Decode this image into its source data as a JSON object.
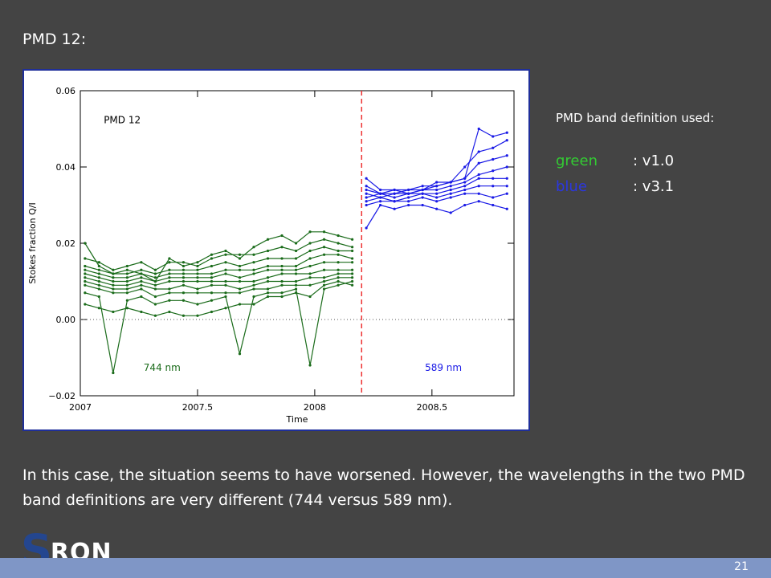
{
  "slide": {
    "title": "PMD 12:",
    "caption": "In this case, the situation seems to have worsened. However, the wavelengths in the two PMD band definitions are very different (744 versus 589 nm).",
    "page_number": "21",
    "logo": "SRON"
  },
  "legend": {
    "title": "PMD band definition used:",
    "items": [
      {
        "key": "green",
        "value": ": v1.0",
        "color": "#33cc33"
      },
      {
        "key": "blue",
        "value": ": v3.1",
        "color": "#2b37e0"
      }
    ]
  },
  "colors": {
    "background": "#444444",
    "green_series": "#1a6b1a",
    "blue_series": "#1a1ae6",
    "vline": "#ee3333",
    "frame_border": "#1f2f9a",
    "bottom_bar": "#7f96c6"
  },
  "chart_data": {
    "type": "line",
    "title": "PMD 12",
    "xlabel": "Time",
    "ylabel": "Stokes fraction Q/I",
    "xlim": [
      2007.0,
      2008.85
    ],
    "ylim": [
      -0.02,
      0.06
    ],
    "xticks": [
      2007.0,
      2007.5,
      2008.0,
      2008.5
    ],
    "xtick_labels": [
      "2007",
      "2007.5",
      "2008",
      "2008.5"
    ],
    "yticks": [
      -0.02,
      0.0,
      0.02,
      0.04,
      0.06
    ],
    "ytick_labels": [
      "−0.02",
      "0.00",
      "0.02",
      "0.04",
      "0.06"
    ],
    "zero_line": 0.0,
    "vertical_line_x": 2008.2,
    "annotations": [
      {
        "text": "744 nm",
        "color": "#1a6b1a",
        "x": 2007.27,
        "y": -0.0135
      },
      {
        "text": "589 nm",
        "color": "#1a1ae6",
        "x": 2008.47,
        "y": -0.0135
      }
    ],
    "x": [
      2007.02,
      2007.08,
      2007.14,
      2007.2,
      2007.26,
      2007.32,
      2007.38,
      2007.44,
      2007.5,
      2007.56,
      2007.62,
      2007.68,
      2007.74,
      2007.8,
      2007.86,
      2007.92,
      2007.98,
      2008.04,
      2008.1,
      2008.16
    ],
    "x_blue": [
      2008.22,
      2008.28,
      2008.34,
      2008.4,
      2008.46,
      2008.52,
      2008.58,
      2008.64,
      2008.7,
      2008.76,
      2008.82
    ],
    "series": [
      {
        "name": "744 nm",
        "color": "#1a6b1a",
        "values": [
          0.02,
          0.014,
          0.012,
          0.013,
          0.012,
          0.01,
          0.016,
          0.014,
          0.015,
          0.017,
          0.018,
          0.016,
          0.019,
          0.021,
          0.022,
          0.02,
          0.023,
          0.023,
          0.022,
          0.021
        ]
      },
      {
        "color": "#1a6b1a",
        "values": [
          0.016,
          0.015,
          0.013,
          0.014,
          0.015,
          0.013,
          0.015,
          0.015,
          0.014,
          0.016,
          0.017,
          0.017,
          0.017,
          0.018,
          0.019,
          0.018,
          0.02,
          0.021,
          0.02,
          0.019
        ]
      },
      {
        "color": "#1a6b1a",
        "values": [
          0.014,
          0.013,
          0.012,
          0.012,
          0.013,
          0.012,
          0.013,
          0.013,
          0.013,
          0.014,
          0.015,
          0.014,
          0.015,
          0.016,
          0.016,
          0.016,
          0.018,
          0.019,
          0.018,
          0.018
        ]
      },
      {
        "color": "#1a6b1a",
        "values": [
          0.013,
          0.012,
          0.011,
          0.011,
          0.012,
          0.011,
          0.012,
          0.012,
          0.012,
          0.012,
          0.013,
          0.013,
          0.013,
          0.014,
          0.014,
          0.014,
          0.016,
          0.017,
          0.017,
          0.016
        ]
      },
      {
        "color": "#1a6b1a",
        "values": [
          0.012,
          0.011,
          0.01,
          0.01,
          0.011,
          0.01,
          0.011,
          0.011,
          0.011,
          0.011,
          0.012,
          0.011,
          0.012,
          0.013,
          0.013,
          0.013,
          0.014,
          0.015,
          0.015,
          0.015
        ]
      },
      {
        "color": "#1a6b1a",
        "values": [
          0.011,
          0.01,
          0.009,
          0.009,
          0.01,
          0.009,
          0.01,
          0.01,
          0.01,
          0.01,
          0.01,
          0.01,
          0.01,
          0.011,
          0.012,
          0.012,
          0.012,
          0.013,
          0.013,
          0.013
        ]
      },
      {
        "color": "#1a6b1a",
        "values": [
          0.01,
          0.009,
          0.008,
          0.008,
          0.009,
          0.008,
          0.008,
          0.009,
          0.008,
          0.009,
          0.009,
          0.008,
          0.009,
          0.01,
          0.01,
          0.01,
          0.011,
          0.011,
          0.012,
          0.012
        ]
      },
      {
        "color": "#1a6b1a",
        "values": [
          0.009,
          0.008,
          0.007,
          0.007,
          0.008,
          0.006,
          0.007,
          0.007,
          0.007,
          0.007,
          0.007,
          0.007,
          0.008,
          0.008,
          0.009,
          0.009,
          0.009,
          0.01,
          0.011,
          0.011
        ]
      },
      {
        "color": "#1a6b1a",
        "values": [
          0.007,
          0.006,
          -0.014,
          0.005,
          0.006,
          0.004,
          0.005,
          0.005,
          0.004,
          0.005,
          0.006,
          -0.009,
          0.006,
          0.007,
          0.007,
          0.008,
          -0.012,
          0.008,
          0.009,
          0.01
        ]
      },
      {
        "color": "#1a6b1a",
        "values": [
          0.004,
          0.003,
          0.002,
          0.003,
          0.002,
          0.001,
          0.002,
          0.001,
          0.001,
          0.002,
          0.003,
          0.004,
          0.004,
          0.006,
          0.006,
          0.007,
          0.006,
          0.009,
          0.01,
          0.009
        ]
      }
    ],
    "blue_series": [
      {
        "name": "589 nm",
        "color": "#1a1ae6",
        "values": [
          0.037,
          0.034,
          0.034,
          0.033,
          0.034,
          0.035,
          0.036,
          0.037,
          0.05,
          0.048,
          0.049
        ]
      },
      {
        "color": "#1a1ae6",
        "values": [
          0.035,
          0.033,
          0.033,
          0.034,
          0.035,
          0.035,
          0.036,
          0.04,
          0.044,
          0.045,
          0.047
        ]
      },
      {
        "color": "#1a1ae6",
        "values": [
          0.034,
          0.033,
          0.034,
          0.034,
          0.034,
          0.036,
          0.036,
          0.037,
          0.041,
          0.042,
          0.043
        ]
      },
      {
        "color": "#1a1ae6",
        "values": [
          0.033,
          0.032,
          0.033,
          0.033,
          0.034,
          0.034,
          0.035,
          0.036,
          0.038,
          0.039,
          0.04
        ]
      },
      {
        "color": "#1a1ae6",
        "values": [
          0.032,
          0.033,
          0.032,
          0.033,
          0.033,
          0.033,
          0.034,
          0.035,
          0.037,
          0.037,
          0.037
        ]
      },
      {
        "color": "#1a1ae6",
        "values": [
          0.031,
          0.032,
          0.031,
          0.032,
          0.033,
          0.032,
          0.033,
          0.034,
          0.035,
          0.035,
          0.035
        ]
      },
      {
        "color": "#1a1ae6",
        "values": [
          0.03,
          0.031,
          0.031,
          0.031,
          0.032,
          0.031,
          0.032,
          0.033,
          0.033,
          0.032,
          0.033
        ]
      },
      {
        "color": "#1a1ae6",
        "values": [
          0.024,
          0.03,
          0.029,
          0.03,
          0.03,
          0.029,
          0.028,
          0.03,
          0.031,
          0.03,
          0.029
        ]
      }
    ]
  }
}
